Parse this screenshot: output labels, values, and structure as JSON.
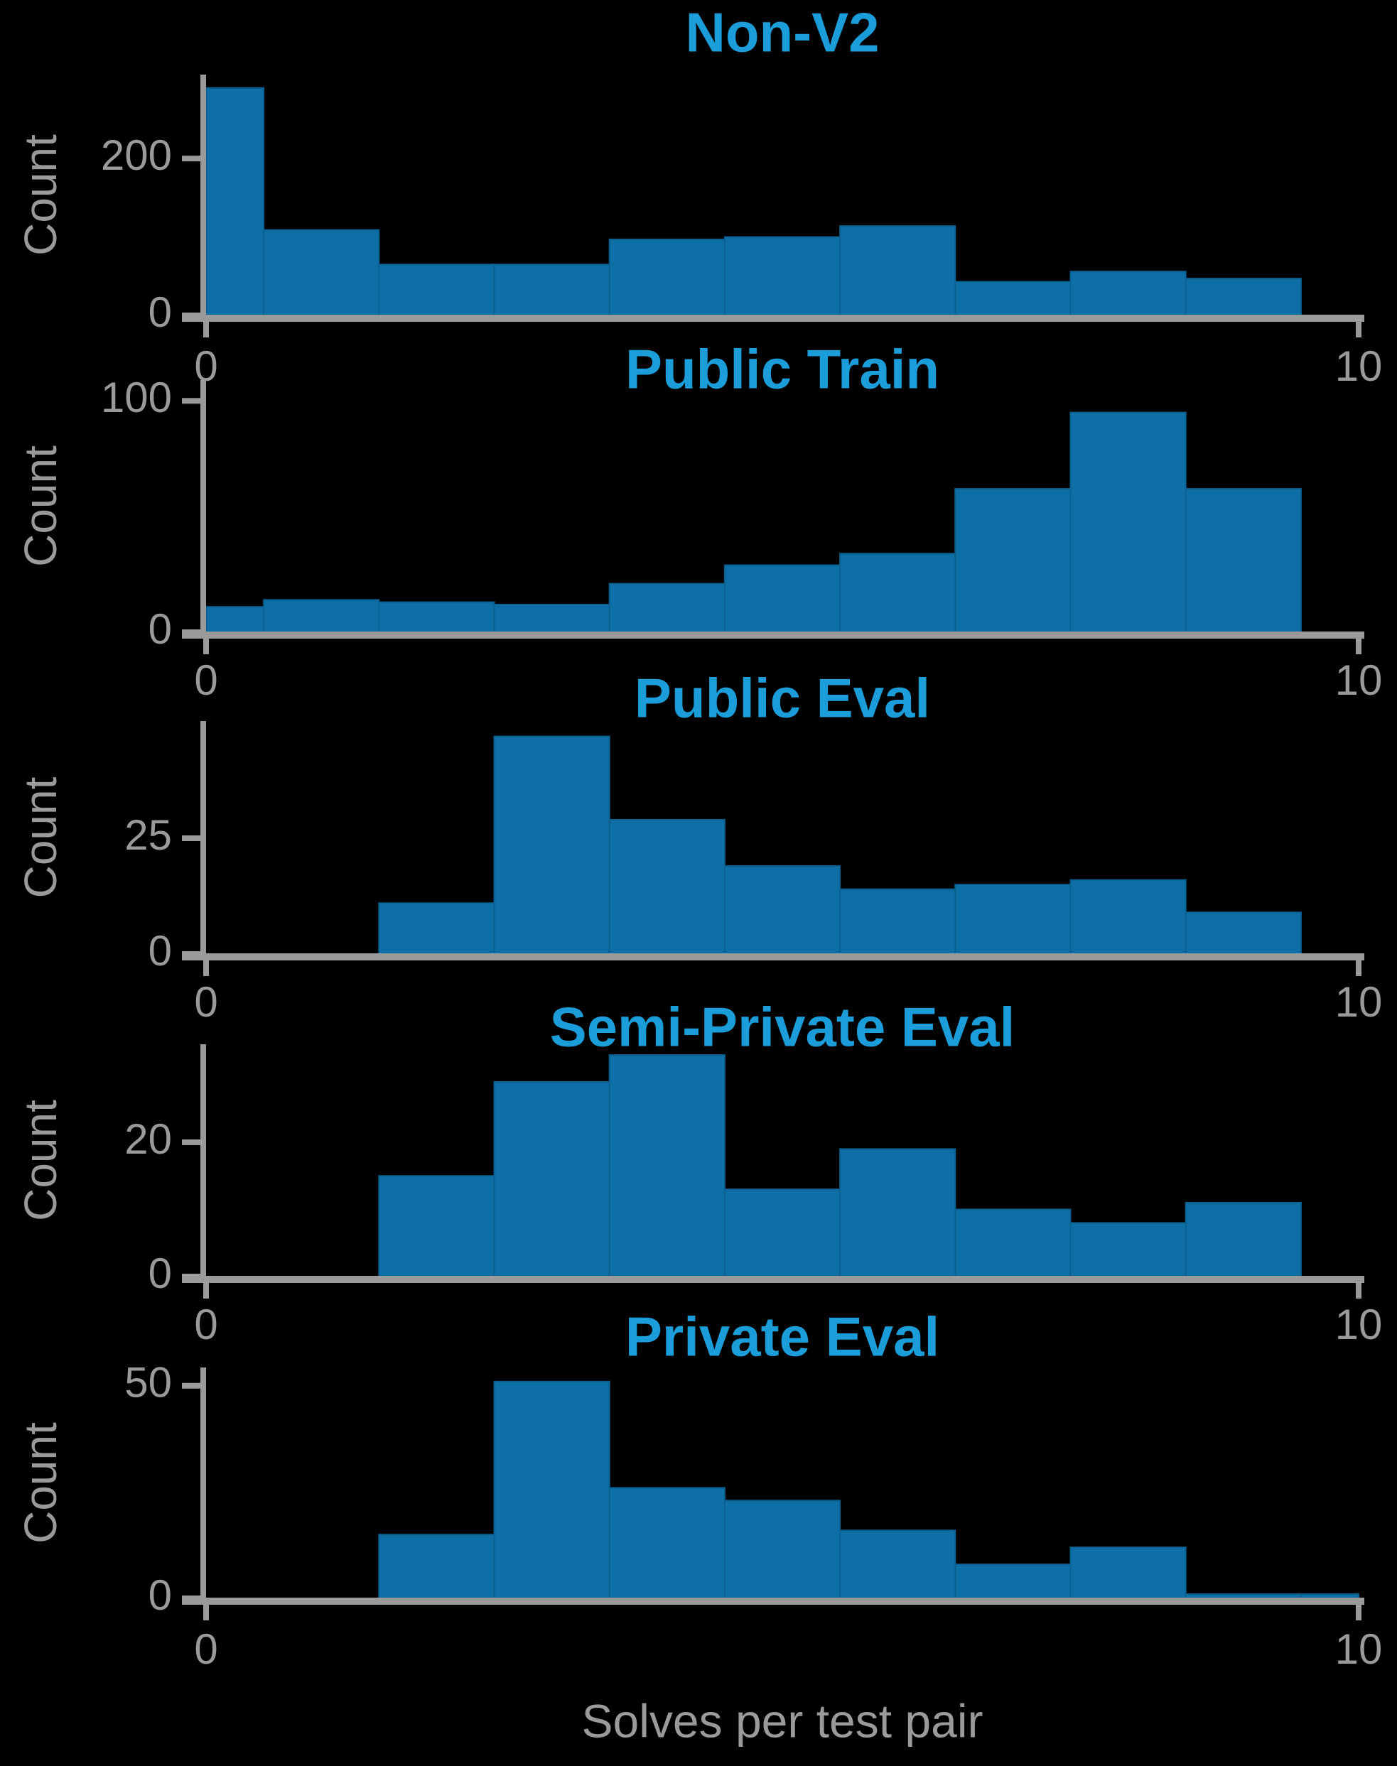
{
  "figure": {
    "xlabel": "Solves per test pair",
    "ylabel": "Count",
    "x_tick_labels": [
      "0",
      "10"
    ],
    "background_color": "#000000",
    "bar_color": "#0e6fa6",
    "bar_edge_color": "#0b6090",
    "title_color": "#1b9dd9",
    "axis_color": "#9a9a9a"
  },
  "chart_data": [
    {
      "type": "bar",
      "title": "Non-V2",
      "ylabel": "Count",
      "xlabel": "",
      "xlim": [
        0,
        10
      ],
      "ylim": [
        0,
        307
      ],
      "xticks": [
        0,
        10
      ],
      "yticks": [
        0,
        200
      ],
      "legend": "none",
      "grid": false,
      "bars": [
        {
          "x0": 0.0,
          "x1": 0.5,
          "n": 290
        },
        {
          "x0": 0.5,
          "x1": 1.5,
          "n": 109
        },
        {
          "x0": 1.5,
          "x1": 2.5,
          "n": 65
        },
        {
          "x0": 2.5,
          "x1": 3.5,
          "n": 65
        },
        {
          "x0": 3.5,
          "x1": 4.5,
          "n": 97
        },
        {
          "x0": 4.5,
          "x1": 5.5,
          "n": 100
        },
        {
          "x0": 5.5,
          "x1": 6.5,
          "n": 114
        },
        {
          "x0": 6.5,
          "x1": 7.5,
          "n": 43
        },
        {
          "x0": 7.5,
          "x1": 8.5,
          "n": 56
        },
        {
          "x0": 8.5,
          "x1": 9.5,
          "n": 47
        }
      ]
    },
    {
      "type": "bar",
      "title": "Public Train",
      "ylabel": "Count",
      "xlabel": "",
      "xlim": [
        0,
        10
      ],
      "ylim": [
        0,
        109
      ],
      "xticks": [
        0,
        10
      ],
      "yticks": [
        0,
        100
      ],
      "legend": "none",
      "grid": false,
      "bars": [
        {
          "x0": 0.0,
          "x1": 0.5,
          "n": 11
        },
        {
          "x0": 0.5,
          "x1": 1.5,
          "n": 14
        },
        {
          "x0": 1.5,
          "x1": 2.5,
          "n": 13
        },
        {
          "x0": 2.5,
          "x1": 3.5,
          "n": 12
        },
        {
          "x0": 3.5,
          "x1": 4.5,
          "n": 21
        },
        {
          "x0": 4.5,
          "x1": 5.5,
          "n": 29
        },
        {
          "x0": 5.5,
          "x1": 6.5,
          "n": 34
        },
        {
          "x0": 6.5,
          "x1": 7.5,
          "n": 62
        },
        {
          "x0": 7.5,
          "x1": 8.5,
          "n": 95
        },
        {
          "x0": 8.5,
          "x1": 9.5,
          "n": 62
        }
      ]
    },
    {
      "type": "bar",
      "title": "Public Eval",
      "ylabel": "Count",
      "xlabel": "",
      "xlim": [
        0,
        10
      ],
      "ylim": [
        0,
        50.3
      ],
      "xticks": [
        0,
        10
      ],
      "yticks": [
        0,
        25
      ],
      "legend": "none",
      "grid": false,
      "bars": [
        {
          "x0": 1.5,
          "x1": 2.5,
          "n": 11
        },
        {
          "x0": 2.5,
          "x1": 3.5,
          "n": 47
        },
        {
          "x0": 3.5,
          "x1": 4.5,
          "n": 29
        },
        {
          "x0": 4.5,
          "x1": 5.5,
          "n": 19
        },
        {
          "x0": 5.5,
          "x1": 6.5,
          "n": 14
        },
        {
          "x0": 6.5,
          "x1": 7.5,
          "n": 15
        },
        {
          "x0": 7.5,
          "x1": 8.5,
          "n": 16
        },
        {
          "x0": 8.5,
          "x1": 9.5,
          "n": 9
        }
      ]
    },
    {
      "type": "bar",
      "title": "Semi-Private Eval",
      "ylabel": "Count",
      "xlabel": "",
      "xlim": [
        0,
        10
      ],
      "ylim": [
        0,
        34.6
      ],
      "xticks": [
        0,
        10
      ],
      "yticks": [
        0,
        20
      ],
      "legend": "none",
      "grid": false,
      "bars": [
        {
          "x0": 1.5,
          "x1": 2.5,
          "n": 15
        },
        {
          "x0": 2.5,
          "x1": 3.5,
          "n": 29
        },
        {
          "x0": 3.5,
          "x1": 4.5,
          "n": 33
        },
        {
          "x0": 4.5,
          "x1": 5.5,
          "n": 13
        },
        {
          "x0": 5.5,
          "x1": 6.5,
          "n": 19
        },
        {
          "x0": 6.5,
          "x1": 7.5,
          "n": 10
        },
        {
          "x0": 7.5,
          "x1": 8.5,
          "n": 8
        },
        {
          "x0": 8.5,
          "x1": 9.5,
          "n": 11
        }
      ]
    },
    {
      "type": "bar",
      "title": "Private Eval",
      "ylabel": "Count",
      "xlabel": "Solves per test pair",
      "xlim": [
        0,
        10
      ],
      "ylim": [
        0,
        54.3
      ],
      "xticks": [
        0,
        10
      ],
      "yticks": [
        0,
        50
      ],
      "legend": "none",
      "grid": false,
      "bars": [
        {
          "x0": 1.5,
          "x1": 2.5,
          "n": 15
        },
        {
          "x0": 2.5,
          "x1": 3.5,
          "n": 51
        },
        {
          "x0": 3.5,
          "x1": 4.5,
          "n": 26
        },
        {
          "x0": 4.5,
          "x1": 5.5,
          "n": 23
        },
        {
          "x0": 5.5,
          "x1": 6.5,
          "n": 16
        },
        {
          "x0": 6.5,
          "x1": 7.5,
          "n": 8
        },
        {
          "x0": 7.5,
          "x1": 8.5,
          "n": 12
        },
        {
          "x0": 8.5,
          "x1": 9.5,
          "n": 1
        },
        {
          "x0": 9.5,
          "x1": 10.0,
          "n": 1
        }
      ]
    }
  ]
}
